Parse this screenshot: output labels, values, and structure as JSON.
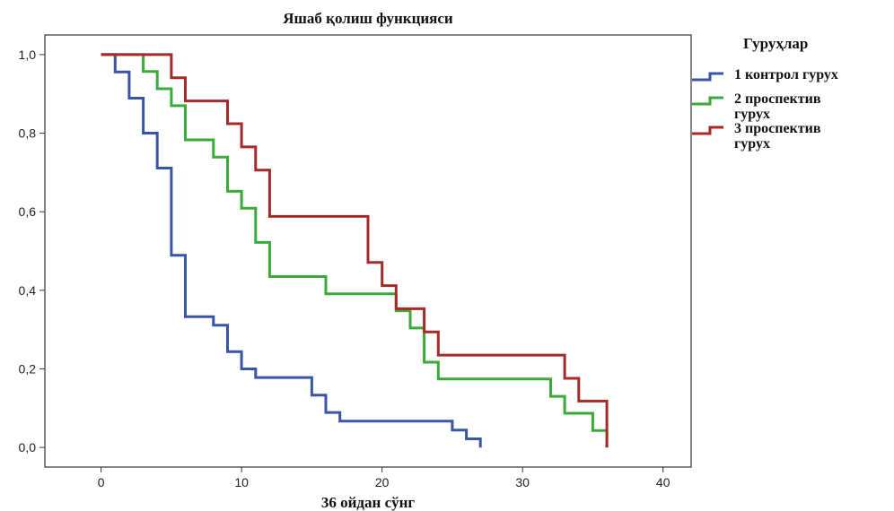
{
  "chart_data": {
    "type": "line",
    "step": true,
    "title": "Яшаб қолиш функцияси",
    "xlabel": "36 ойдан сўнг",
    "ylabel": "",
    "xlim": [
      -4,
      42
    ],
    "ylim": [
      -0.05,
      1.05
    ],
    "xticks": [
      0,
      10,
      20,
      30,
      40
    ],
    "xtick_labels": [
      "0",
      "10",
      "20",
      "30",
      "40"
    ],
    "yticks": [
      0.0,
      0.2,
      0.4,
      0.6,
      0.8,
      1.0
    ],
    "ytick_labels": [
      "0,0",
      "0,2",
      "0,4",
      "0,6",
      "0,8",
      "1,0"
    ],
    "grid": false,
    "legend": {
      "title": "Гуруҳлар",
      "position": "right"
    },
    "series": [
      {
        "name": "1 контрол гурух",
        "legend_lines": [
          "1 контрол гурух"
        ],
        "color": "#3a55a8",
        "x": [
          0,
          1,
          1,
          2,
          2,
          3,
          3,
          4,
          4,
          5,
          5,
          6,
          6,
          8,
          8,
          9,
          9,
          10,
          10,
          11,
          11,
          15,
          15,
          16,
          16,
          17,
          17,
          25,
          25,
          26,
          26,
          27,
          27
        ],
        "y": [
          1.0,
          1.0,
          0.956,
          0.956,
          0.889,
          0.889,
          0.8,
          0.8,
          0.711,
          0.711,
          0.489,
          0.489,
          0.333,
          0.333,
          0.311,
          0.311,
          0.244,
          0.244,
          0.2,
          0.2,
          0.178,
          0.178,
          0.133,
          0.133,
          0.089,
          0.089,
          0.067,
          0.067,
          0.044,
          0.044,
          0.022,
          0.022,
          0.0
        ]
      },
      {
        "name": "2 проспектив гурух",
        "legend_lines": [
          "2 проспектив",
          "гурух"
        ],
        "color": "#3aaa3a",
        "x": [
          0,
          3,
          3,
          4,
          4,
          5,
          5,
          6,
          6,
          8,
          8,
          9,
          9,
          10,
          10,
          11,
          11,
          12,
          12,
          16,
          16,
          21,
          21,
          22,
          22,
          23,
          23,
          24,
          24,
          32,
          32,
          33,
          33,
          35,
          35,
          36,
          36
        ],
        "y": [
          1.0,
          1.0,
          0.957,
          0.957,
          0.913,
          0.913,
          0.87,
          0.87,
          0.783,
          0.783,
          0.739,
          0.739,
          0.652,
          0.652,
          0.609,
          0.609,
          0.522,
          0.522,
          0.435,
          0.435,
          0.391,
          0.391,
          0.348,
          0.348,
          0.304,
          0.304,
          0.217,
          0.217,
          0.174,
          0.174,
          0.13,
          0.13,
          0.087,
          0.087,
          0.043,
          0.043,
          0.0
        ]
      },
      {
        "name": "3 проспектив гурух",
        "legend_lines": [
          "3 проспектив",
          "гурух"
        ],
        "color": "#a52a2a",
        "x": [
          0,
          5,
          5,
          6,
          6,
          9,
          9,
          10,
          10,
          11,
          11,
          12,
          12,
          19,
          19,
          20,
          20,
          21,
          21,
          23,
          23,
          24,
          24,
          33,
          33,
          34,
          34,
          36,
          36
        ],
        "y": [
          1.0,
          1.0,
          0.941,
          0.941,
          0.882,
          0.882,
          0.824,
          0.824,
          0.765,
          0.765,
          0.706,
          0.706,
          0.588,
          0.588,
          0.471,
          0.471,
          0.412,
          0.412,
          0.353,
          0.353,
          0.294,
          0.294,
          0.235,
          0.235,
          0.176,
          0.176,
          0.118,
          0.118,
          0.0
        ]
      }
    ]
  }
}
